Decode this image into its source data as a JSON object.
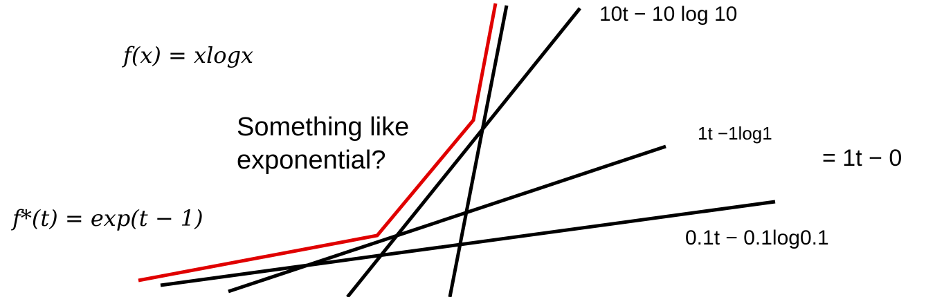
{
  "labels": {
    "f": "f(x) = xlogx",
    "fstar": "f*(t) = exp(t − 1)",
    "note_line1": "Something like",
    "note_line2": "exponential?",
    "line_10": "10t − 10 log 10",
    "line_1": "1t −1log1",
    "line_1_simplified": "= 1t − 0",
    "line_01": "0.1t − 0.1log0.1"
  },
  "colors": {
    "conjugate_curve": "#e00000",
    "tangent_lines": "#000000"
  }
}
